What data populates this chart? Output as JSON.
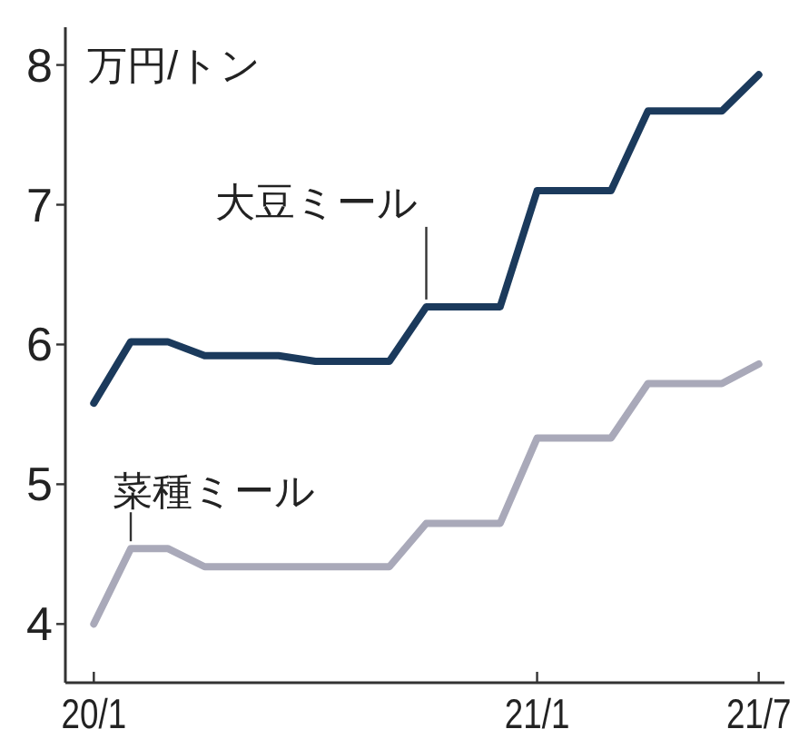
{
  "chart_data": {
    "type": "line",
    "ylabel": "万円/トン",
    "categories": [
      "20/1",
      null,
      null,
      null,
      null,
      null,
      null,
      null,
      null,
      null,
      null,
      null,
      "21/1",
      null,
      null,
      null,
      null,
      null,
      "21/7"
    ],
    "series": [
      {
        "name": "大豆ミール",
        "color": "#1b3a5c",
        "values": [
          5.58,
          6.02,
          6.02,
          5.92,
          5.92,
          5.92,
          5.88,
          5.88,
          5.88,
          6.27,
          6.27,
          6.27,
          7.1,
          7.1,
          7.1,
          7.67,
          7.67,
          7.67,
          7.93
        ]
      },
      {
        "name": "菜種ミール",
        "color": "#a9a9b9",
        "values": [
          4.0,
          4.54,
          4.54,
          4.41,
          4.41,
          4.41,
          4.41,
          4.41,
          4.41,
          4.72,
          4.72,
          4.72,
          5.33,
          5.33,
          5.33,
          5.72,
          5.72,
          5.72,
          5.86
        ]
      }
    ],
    "ylim": [
      3.58,
      8.27
    ],
    "yticks": [
      4,
      5,
      6,
      7,
      8
    ],
    "grid": false,
    "marker": "none",
    "line_style": "solid"
  }
}
